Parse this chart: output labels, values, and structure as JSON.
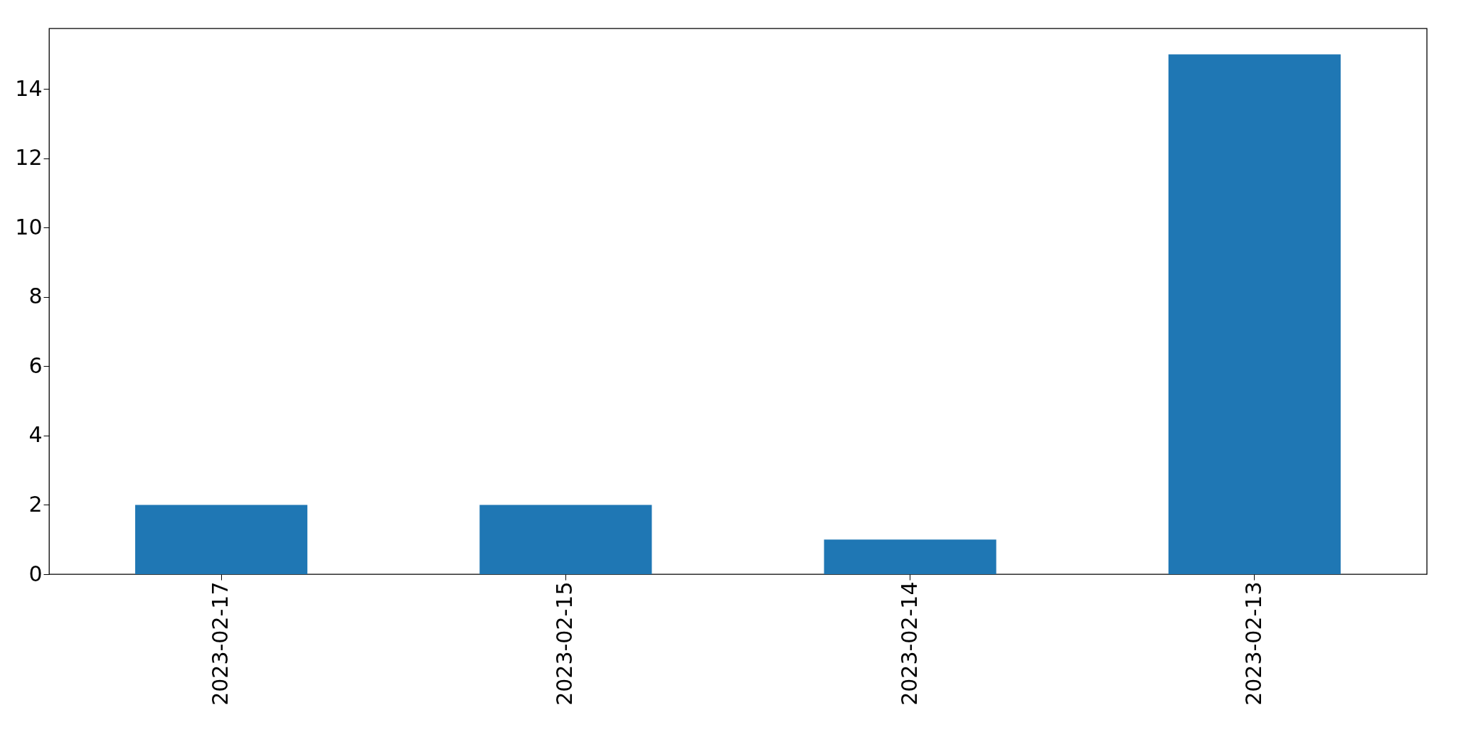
{
  "chart_data": {
    "type": "bar",
    "categories": [
      "2023-02-17",
      "2023-02-15",
      "2023-02-14",
      "2023-02-13"
    ],
    "values": [
      2,
      2,
      1,
      15
    ],
    "color": "#1f77b4",
    "ylim": [
      0,
      15.75
    ],
    "yticks": [
      0,
      2,
      4,
      6,
      8,
      10,
      12,
      14
    ]
  }
}
